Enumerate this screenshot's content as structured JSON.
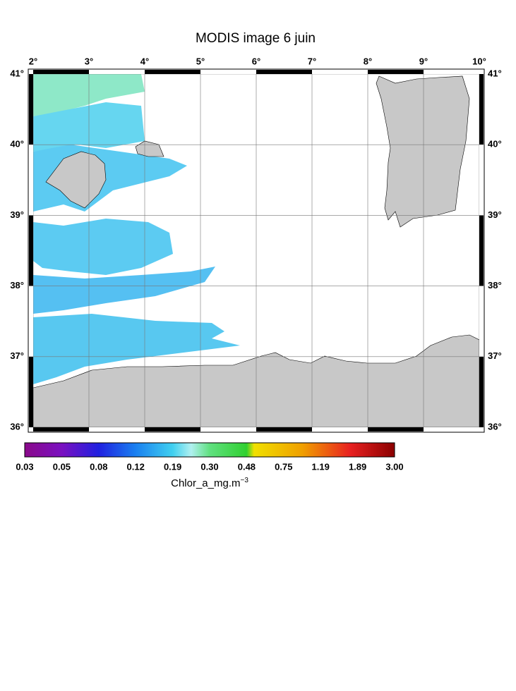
{
  "title": "MODIS image 6 juin",
  "longitude_labels": [
    "2°",
    "3°",
    "4°",
    "5°",
    "6°",
    "7°",
    "8°",
    "9°",
    "10°"
  ],
  "latitude_labels": [
    "41°",
    "40°",
    "39°",
    "38°",
    "37°",
    "36°"
  ],
  "colorbar": {
    "labels": [
      "0.03",
      "0.05",
      "0.08",
      "0.12",
      "0.19",
      "0.30",
      "0.48",
      "0.75",
      "1.19",
      "1.89",
      "3.00"
    ],
    "unit": "Chlor_a_mg.m",
    "unit_exponent": "−3"
  }
}
